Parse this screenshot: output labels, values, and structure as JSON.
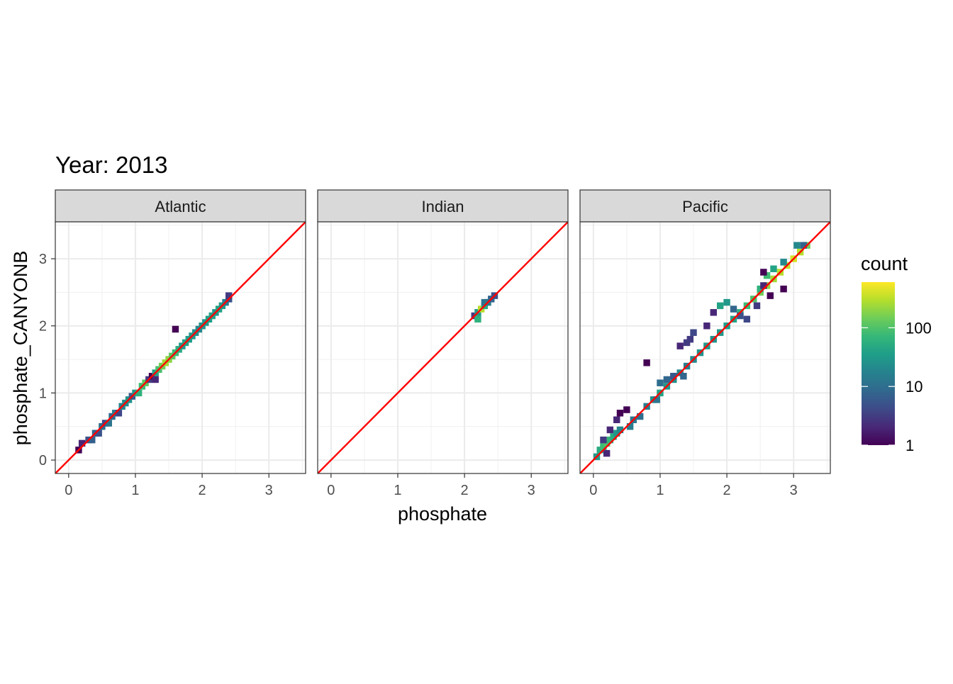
{
  "chart_data": {
    "type": "heatmap",
    "title": "Year: 2013",
    "xlabel": "phosphate",
    "ylabel": "phosphate_CANYONB",
    "x_ticks": [
      0,
      1,
      2,
      3
    ],
    "y_ticks": [
      0,
      1,
      2,
      3
    ],
    "xlim": [
      -0.2,
      3.55
    ],
    "ylim": [
      -0.2,
      3.55
    ],
    "bin_width": 0.1,
    "grid": true,
    "reference_line": {
      "slope": 1,
      "intercept": 0,
      "color": "#ff0000"
    },
    "legend": {
      "title": "count",
      "scale": "log10",
      "breaks": [
        1,
        10,
        100
      ],
      "break_labels": [
        "1",
        "10",
        "100"
      ],
      "max": 600,
      "placement": "right"
    },
    "panels": [
      {
        "name": "Atlantic",
        "bins": [
          [
            0.15,
            0.15,
            1
          ],
          [
            0.2,
            0.25,
            2
          ],
          [
            0.3,
            0.3,
            5
          ],
          [
            0.35,
            0.3,
            7
          ],
          [
            0.4,
            0.4,
            8
          ],
          [
            0.45,
            0.4,
            5
          ],
          [
            0.5,
            0.5,
            10
          ],
          [
            0.55,
            0.55,
            4
          ],
          [
            0.6,
            0.55,
            12
          ],
          [
            0.65,
            0.65,
            9
          ],
          [
            0.7,
            0.7,
            15
          ],
          [
            0.75,
            0.7,
            4
          ],
          [
            0.8,
            0.8,
            18
          ],
          [
            0.85,
            0.85,
            22
          ],
          [
            0.9,
            0.9,
            25
          ],
          [
            0.95,
            0.95,
            6
          ],
          [
            1.0,
            1.0,
            30
          ],
          [
            1.05,
            1.0,
            60
          ],
          [
            1.1,
            1.1,
            80
          ],
          [
            1.15,
            1.15,
            120
          ],
          [
            1.2,
            1.2,
            3
          ],
          [
            1.25,
            1.25,
            1
          ],
          [
            1.3,
            1.3,
            40
          ],
          [
            1.35,
            1.35,
            90
          ],
          [
            1.4,
            1.4,
            150
          ],
          [
            1.45,
            1.45,
            250
          ],
          [
            1.5,
            1.5,
            200
          ],
          [
            1.55,
            1.55,
            120
          ],
          [
            1.6,
            1.6,
            80
          ],
          [
            1.65,
            1.65,
            50
          ],
          [
            1.7,
            1.7,
            30
          ],
          [
            1.75,
            1.75,
            40
          ],
          [
            1.8,
            1.8,
            35
          ],
          [
            1.85,
            1.85,
            30
          ],
          [
            1.9,
            1.9,
            25
          ],
          [
            1.95,
            1.95,
            20
          ],
          [
            2.0,
            2.0,
            25
          ],
          [
            2.05,
            2.05,
            30
          ],
          [
            2.1,
            2.1,
            35
          ],
          [
            2.15,
            2.15,
            40
          ],
          [
            2.2,
            2.2,
            30
          ],
          [
            2.25,
            2.25,
            40
          ],
          [
            2.3,
            2.3,
            30
          ],
          [
            2.35,
            2.35,
            15
          ],
          [
            2.4,
            2.4,
            5
          ],
          [
            1.6,
            1.95,
            1
          ],
          [
            1.3,
            1.2,
            2
          ],
          [
            2.4,
            2.45,
            3
          ]
        ]
      },
      {
        "name": "Indian",
        "bins": [
          [
            2.15,
            2.15,
            3
          ],
          [
            2.2,
            2.2,
            30
          ],
          [
            2.25,
            2.25,
            300
          ],
          [
            2.3,
            2.3,
            50
          ],
          [
            2.35,
            2.35,
            15
          ],
          [
            2.4,
            2.4,
            8
          ],
          [
            2.45,
            2.45,
            5
          ],
          [
            2.2,
            2.1,
            60
          ],
          [
            2.3,
            2.35,
            12
          ]
        ]
      },
      {
        "name": "Pacific",
        "bins": [
          [
            0.05,
            0.05,
            30
          ],
          [
            0.1,
            0.15,
            50
          ],
          [
            0.15,
            0.2,
            80
          ],
          [
            0.2,
            0.25,
            100
          ],
          [
            0.25,
            0.3,
            70
          ],
          [
            0.3,
            0.35,
            50
          ],
          [
            0.35,
            0.4,
            30
          ],
          [
            0.4,
            0.45,
            20
          ],
          [
            0.15,
            0.3,
            3
          ],
          [
            0.25,
            0.45,
            2
          ],
          [
            0.35,
            0.6,
            2
          ],
          [
            0.4,
            0.7,
            1
          ],
          [
            0.5,
            0.75,
            1
          ],
          [
            0.55,
            0.5,
            15
          ],
          [
            0.6,
            0.6,
            12
          ],
          [
            0.7,
            0.65,
            10
          ],
          [
            0.8,
            0.8,
            15
          ],
          [
            0.9,
            0.9,
            25
          ],
          [
            1.0,
            1.0,
            40
          ],
          [
            1.1,
            1.1,
            30
          ],
          [
            1.2,
            1.2,
            25
          ],
          [
            1.3,
            1.3,
            20
          ],
          [
            1.4,
            1.4,
            15
          ],
          [
            1.5,
            1.5,
            20
          ],
          [
            1.6,
            1.6,
            25
          ],
          [
            1.7,
            1.7,
            30
          ],
          [
            1.8,
            1.8,
            25
          ],
          [
            1.9,
            1.9,
            30
          ],
          [
            2.0,
            2.0,
            35
          ],
          [
            2.1,
            2.1,
            40
          ],
          [
            2.2,
            2.2,
            60
          ],
          [
            2.3,
            2.3,
            80
          ],
          [
            2.4,
            2.4,
            100
          ],
          [
            2.5,
            2.5,
            150
          ],
          [
            2.6,
            2.6,
            200
          ],
          [
            2.7,
            2.7,
            250
          ],
          [
            2.8,
            2.8,
            300
          ],
          [
            2.9,
            2.9,
            350
          ],
          [
            3.0,
            3.0,
            400
          ],
          [
            3.1,
            3.1,
            300
          ],
          [
            3.2,
            3.2,
            150
          ],
          [
            2.6,
            2.75,
            80
          ],
          [
            2.5,
            2.55,
            60
          ],
          [
            2.7,
            2.85,
            40
          ],
          [
            3.05,
            3.2,
            20
          ],
          [
            3.15,
            3.2,
            8
          ],
          [
            1.5,
            1.9,
            4
          ],
          [
            1.45,
            1.8,
            3
          ],
          [
            1.4,
            1.75,
            3
          ],
          [
            1.3,
            1.7,
            2
          ],
          [
            1.7,
            2.0,
            2
          ],
          [
            1.8,
            2.2,
            2
          ],
          [
            1.9,
            2.3,
            40
          ],
          [
            2.0,
            2.35,
            30
          ],
          [
            2.1,
            2.25,
            8
          ],
          [
            2.2,
            2.15,
            5
          ],
          [
            2.3,
            2.1,
            4
          ],
          [
            2.45,
            2.3,
            3
          ],
          [
            2.55,
            2.6,
            2
          ],
          [
            2.55,
            2.8,
            1
          ],
          [
            2.85,
            2.55,
            1
          ],
          [
            2.65,
            2.45,
            1
          ],
          [
            0.8,
            1.45,
            1
          ],
          [
            1.0,
            1.15,
            10
          ],
          [
            1.1,
            1.2,
            8
          ],
          [
            1.2,
            1.25,
            6
          ],
          [
            0.2,
            0.1,
            2
          ],
          [
            0.95,
            0.9,
            12
          ],
          [
            1.35,
            1.25,
            8
          ],
          [
            2.85,
            2.95,
            20
          ]
        ]
      }
    ]
  }
}
